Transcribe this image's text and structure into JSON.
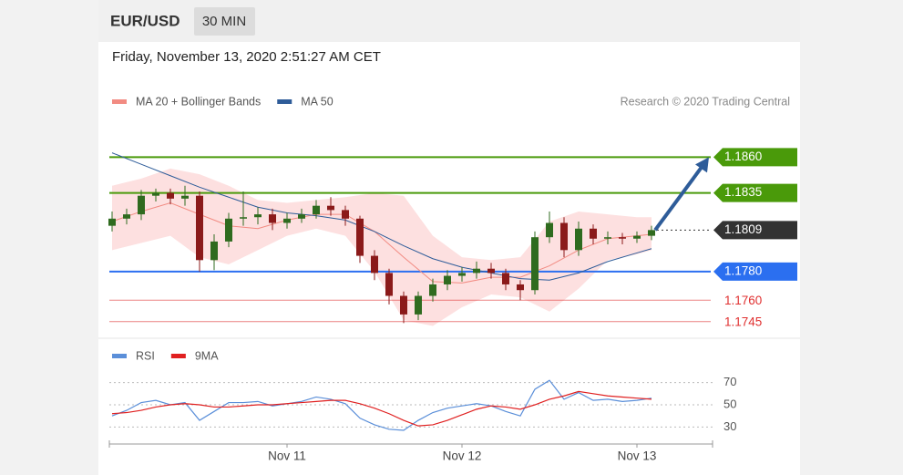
{
  "header": {
    "symbol": "EUR/USD",
    "timeframe": "30 MIN"
  },
  "timestamp": "Friday, November 13, 2020 2:51:27 AM CET",
  "chart_data": [
    {
      "type": "candlestick",
      "credit": "Research © 2020 Trading Central",
      "x": [
        0,
        2,
        4,
        6,
        8,
        10,
        12,
        14,
        16,
        18,
        20,
        22,
        24,
        26,
        28,
        30,
        32,
        34,
        36,
        38,
        40,
        42,
        44,
        46,
        48,
        50,
        52,
        54,
        56,
        58,
        60,
        62,
        64,
        66,
        68,
        70,
        72,
        74
      ],
      "open": [
        1.1812,
        1.1817,
        1.182,
        1.1833,
        1.1835,
        1.1831,
        1.1833,
        1.1788,
        1.1801,
        1.1817,
        1.1818,
        1.182,
        1.1814,
        1.1817,
        1.182,
        1.1826,
        1.1823,
        1.1817,
        1.1791,
        1.1779,
        1.1763,
        1.175,
        1.1763,
        1.1771,
        1.1777,
        1.1779,
        1.1782,
        1.1779,
        1.1771,
        1.1767,
        1.1804,
        1.1814,
        1.1795,
        1.181,
        1.1803,
        1.1804,
        1.1803,
        1.1805
      ],
      "high": [
        1.1822,
        1.1824,
        1.1837,
        1.1838,
        1.1838,
        1.184,
        1.1836,
        1.1806,
        1.1821,
        1.1836,
        1.1825,
        1.1824,
        1.1821,
        1.1824,
        1.183,
        1.1832,
        1.1826,
        1.1819,
        1.1795,
        1.1782,
        1.1766,
        1.1766,
        1.1775,
        1.1781,
        1.1783,
        1.1787,
        1.1786,
        1.1782,
        1.1774,
        1.1808,
        1.1822,
        1.1818,
        1.1815,
        1.1813,
        1.1808,
        1.1807,
        1.1808,
        1.1812
      ],
      "low": [
        1.1808,
        1.1813,
        1.1816,
        1.1829,
        1.1827,
        1.1826,
        1.178,
        1.1781,
        1.1797,
        1.1812,
        1.1813,
        1.1809,
        1.181,
        1.1814,
        1.1817,
        1.1819,
        1.1812,
        1.1786,
        1.1774,
        1.1757,
        1.1744,
        1.1746,
        1.1759,
        1.1767,
        1.1773,
        1.1775,
        1.1775,
        1.1767,
        1.176,
        1.1764,
        1.18,
        1.179,
        1.1791,
        1.1799,
        1.1799,
        1.1799,
        1.18,
        1.1802
      ],
      "close": [
        1.1817,
        1.182,
        1.1833,
        1.1835,
        1.1831,
        1.1833,
        1.1788,
        1.1801,
        1.1817,
        1.1818,
        1.182,
        1.1814,
        1.1817,
        1.182,
        1.1826,
        1.1823,
        1.1817,
        1.1791,
        1.1779,
        1.1763,
        1.175,
        1.1763,
        1.1771,
        1.1777,
        1.1779,
        1.1782,
        1.1779,
        1.1771,
        1.1767,
        1.1804,
        1.1814,
        1.1795,
        1.181,
        1.1803,
        1.1804,
        1.1803,
        1.1805,
        1.1809
      ],
      "up_color": "#2f6b1f",
      "down_color": "#8b1a1a",
      "series": [
        {
          "name": "MA 20 + Bollinger Bands",
          "color": "#f28b82",
          "band_color": "#fde0e0",
          "x": [
            0,
            4,
            8,
            12,
            16,
            20,
            24,
            28,
            32,
            36,
            40,
            44,
            48,
            52,
            56,
            60,
            64,
            68,
            72,
            74
          ],
          "values": [
            1.1815,
            1.1822,
            1.1828,
            1.182,
            1.1812,
            1.181,
            1.1816,
            1.182,
            1.182,
            1.1808,
            1.179,
            1.1773,
            1.1772,
            1.1776,
            1.1776,
            1.1784,
            1.1795,
            1.1803,
            1.1805,
            1.1806
          ],
          "upper": [
            1.184,
            1.1845,
            1.1852,
            1.1848,
            1.184,
            1.183,
            1.1828,
            1.183,
            1.1832,
            1.1835,
            1.1833,
            1.1805,
            1.179,
            1.1788,
            1.179,
            1.1815,
            1.1822,
            1.182,
            1.1818,
            1.1818
          ],
          "lower": [
            1.1795,
            1.18,
            1.1805,
            1.179,
            1.1785,
            1.1795,
            1.1805,
            1.181,
            1.1805,
            1.178,
            1.1746,
            1.1742,
            1.1755,
            1.1764,
            1.1762,
            1.1752,
            1.1768,
            1.1788,
            1.1792,
            1.1795
          ]
        },
        {
          "name": "MA 50",
          "color": "#2e5c99",
          "x": [
            0,
            4,
            8,
            12,
            16,
            20,
            24,
            28,
            32,
            36,
            40,
            44,
            48,
            52,
            56,
            60,
            64,
            68,
            72,
            74
          ],
          "values": [
            1.1863,
            1.1855,
            1.1847,
            1.1839,
            1.1832,
            1.1825,
            1.1821,
            1.1819,
            1.1816,
            1.1808,
            1.1798,
            1.1789,
            1.1783,
            1.1779,
            1.1775,
            1.1774,
            1.1779,
            1.1787,
            1.1793,
            1.1796
          ]
        }
      ],
      "levels": [
        {
          "value": 1.186,
          "label": "1.1860",
          "color": "#4a9a0a",
          "line": "solid",
          "tag": true
        },
        {
          "value": 1.1835,
          "label": "1.1835",
          "color": "#4a9a0a",
          "line": "solid",
          "tag": true
        },
        {
          "value": 1.1809,
          "label": "1.1809",
          "color": "#333333",
          "line": "dotted",
          "tag": true
        },
        {
          "value": 1.178,
          "label": "1.1780",
          "color": "#2b6ff0",
          "line": "solid",
          "tag": true
        },
        {
          "value": 1.176,
          "label": "1.1760",
          "color": "#e03030",
          "line": "solid",
          "tag": false
        },
        {
          "value": 1.1745,
          "label": "1.1745",
          "color": "#e03030",
          "line": "solid",
          "tag": false
        }
      ],
      "arrow_color": "#2e5c99",
      "xlim": [
        0,
        82
      ],
      "ylim": [
        1.1734,
        1.1887
      ]
    },
    {
      "type": "line",
      "x": [
        0,
        2,
        4,
        6,
        8,
        10,
        12,
        14,
        16,
        18,
        20,
        22,
        24,
        26,
        28,
        30,
        32,
        34,
        36,
        38,
        40,
        42,
        44,
        46,
        48,
        50,
        52,
        54,
        56,
        58,
        60,
        62,
        64,
        66,
        68,
        70,
        72,
        74
      ],
      "series": [
        {
          "name": "RSI",
          "color": "#5b8fd9",
          "values": [
            40,
            45,
            52,
            54,
            50,
            52,
            36,
            44,
            52,
            52,
            53,
            49,
            51,
            53,
            57,
            55,
            51,
            38,
            32,
            28,
            27,
            36,
            43,
            47,
            49,
            51,
            49,
            44,
            40,
            64,
            72,
            55,
            61,
            54,
            55,
            53,
            54,
            56
          ]
        },
        {
          "name": "9MA",
          "color": "#e02020",
          "values": [
            42,
            43,
            45,
            48,
            50,
            51,
            50,
            48,
            48,
            49,
            50,
            50,
            51,
            52,
            53,
            54,
            54,
            51,
            47,
            42,
            36,
            31,
            32,
            36,
            41,
            46,
            49,
            48,
            46,
            50,
            55,
            58,
            62,
            60,
            58,
            57,
            56,
            55
          ]
        }
      ],
      "ylim": [
        18,
        82
      ],
      "yticks": [
        70,
        50,
        30
      ],
      "xlim": [
        0,
        82
      ],
      "xticks": [
        {
          "value": 24,
          "label": "Nov 11"
        },
        {
          "value": 48,
          "label": "Nov 12"
        },
        {
          "value": 72,
          "label": "Nov 13"
        }
      ],
      "grid": true
    }
  ]
}
